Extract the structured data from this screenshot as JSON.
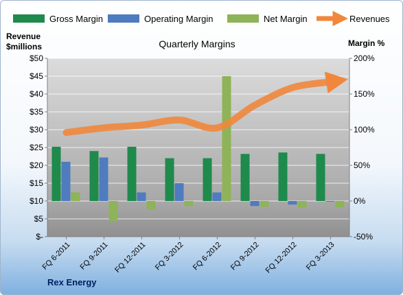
{
  "chart_data": {
    "type": "bar",
    "title": "Quarterly Margins",
    "categories": [
      "FQ 6-2011",
      "FQ 9-2011",
      "FQ 12-2011",
      "FQ 3-2012",
      "FQ 6-2012",
      "FQ 9-2012",
      "FQ 12-2012",
      "FQ 3-2013"
    ],
    "series": [
      {
        "name": "Gross Margin",
        "axis": "right",
        "color": "#1e8a4c",
        "values": [
          76,
          70,
          76,
          60,
          60,
          66,
          68,
          66
        ]
      },
      {
        "name": "Operating Margin",
        "axis": "right",
        "color": "#4f7bbf",
        "values": [
          55,
          61,
          12,
          25,
          12,
          -7,
          -5,
          -1
        ]
      },
      {
        "name": "Net Margin",
        "axis": "right",
        "color": "#8fb358",
        "values": [
          12,
          -28,
          -12,
          -7,
          175,
          -8,
          -9,
          -9
        ]
      },
      {
        "name": "Revenues",
        "type": "line",
        "axis": "left",
        "color": "#f0873c",
        "values": [
          29.2,
          30.5,
          31.3,
          32.7,
          30.5,
          36.9,
          41.8,
          43.4
        ]
      }
    ],
    "y_left": {
      "label_line1": "Revenue",
      "label_line2": "$millions",
      "min": 0,
      "max": 50,
      "step": 5,
      "ticks": [
        "$-",
        "$5",
        "$10",
        "$15",
        "$20",
        "$25",
        "$30",
        "$35",
        "$40",
        "$45",
        "$50"
      ]
    },
    "y_right": {
      "label": "Margin %",
      "min": -50,
      "max": 200,
      "step": 50,
      "ticks": [
        "-50%",
        "0%",
        "50%",
        "100%",
        "150%",
        "200%"
      ]
    },
    "legend_position": "top",
    "grid": true,
    "source_label": "Rex Energy"
  }
}
